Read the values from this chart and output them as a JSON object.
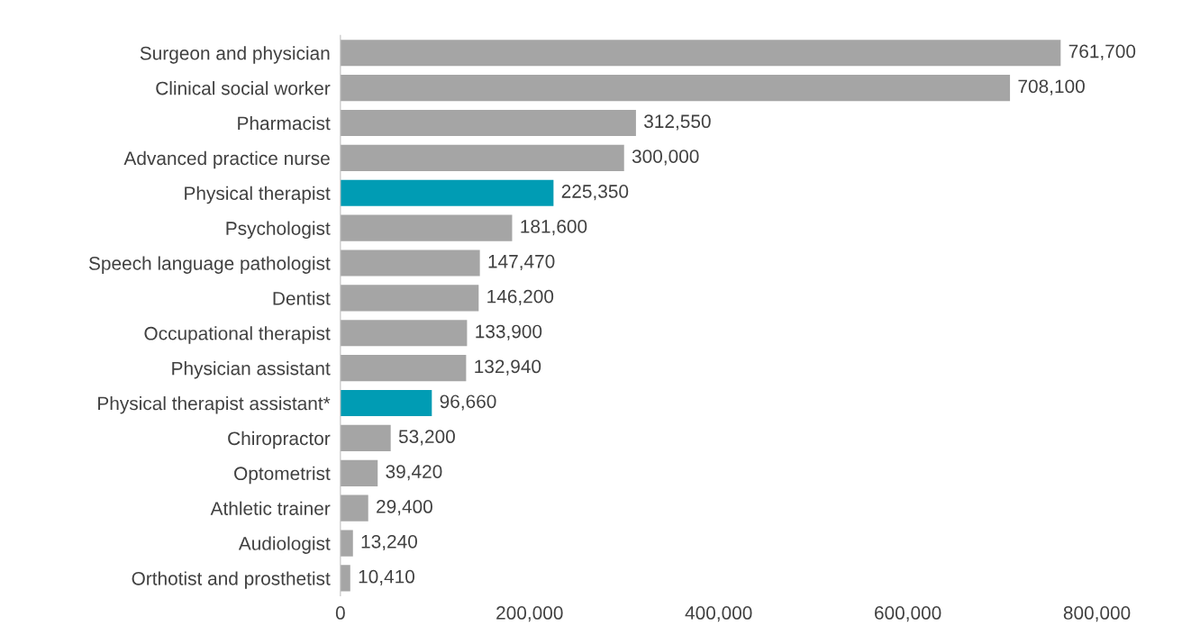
{
  "chart_data": {
    "type": "bar",
    "orientation": "horizontal",
    "categories": [
      "Surgeon and physician",
      "Clinical social worker",
      "Pharmacist",
      "Advanced practice nurse",
      "Physical therapist",
      "Psychologist",
      "Speech language pathologist",
      "Dentist",
      "Occupational therapist",
      "Physician assistant",
      "Physical therapist assistant*",
      "Chiropractor",
      "Optometrist",
      "Athletic trainer",
      "Audiologist",
      "Orthotist and prosthetist"
    ],
    "values": [
      761700,
      708100,
      312550,
      300000,
      225350,
      181600,
      147470,
      146200,
      133900,
      132940,
      96660,
      53200,
      39420,
      29400,
      13240,
      10410
    ],
    "value_labels": [
      "761,700",
      "708,100",
      "312,550",
      "300,000",
      "225,350",
      "181,600",
      "147,470",
      "146,200",
      "133,900",
      "132,940",
      "96,660",
      "53,200",
      "39,420",
      "29,400",
      "13,240",
      "10,410"
    ],
    "colors": [
      "#a5a5a5",
      "#a5a5a5",
      "#a5a5a5",
      "#a5a5a5",
      "#009cb4",
      "#a5a5a5",
      "#a5a5a5",
      "#a5a5a5",
      "#a5a5a5",
      "#a5a5a5",
      "#009cb4",
      "#a5a5a5",
      "#a5a5a5",
      "#a5a5a5",
      "#a5a5a5",
      "#a5a5a5"
    ],
    "xlim": [
      0,
      800000
    ],
    "xticks": [
      {
        "value": 0,
        "label": "0"
      },
      {
        "value": 200000,
        "label": "200,000"
      },
      {
        "value": 400000,
        "label": "400,000"
      },
      {
        "value": 600000,
        "label": "600,000"
      },
      {
        "value": 800000,
        "label": "800,000"
      }
    ],
    "grid": false,
    "legend": false
  }
}
